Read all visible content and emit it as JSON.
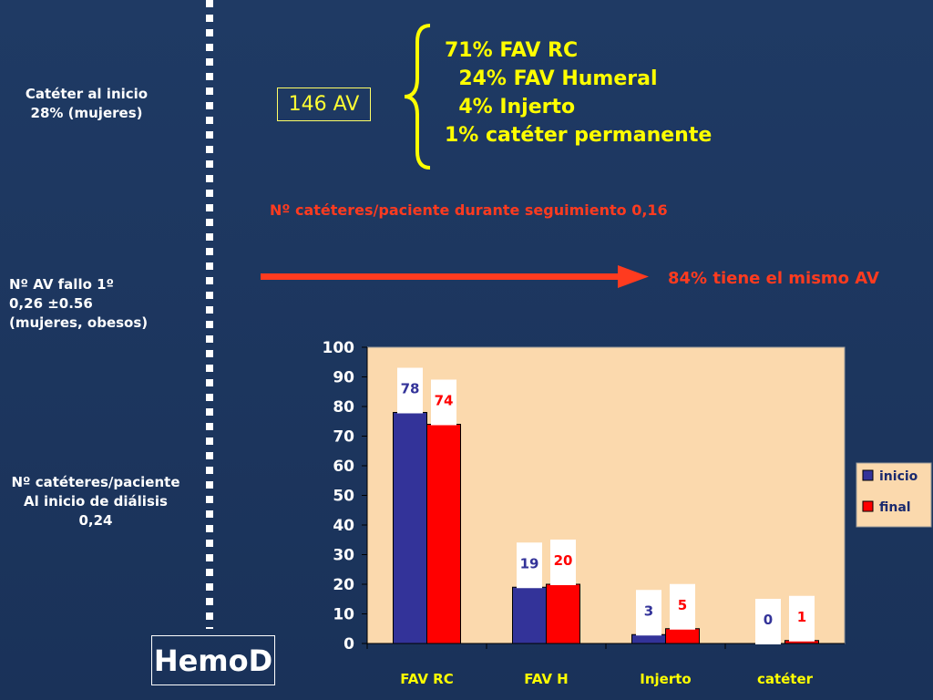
{
  "left_notes": {
    "catheter_start": [
      "Catéter al inicio",
      "28% (mujeres)"
    ],
    "av_failure": [
      "Nº AV fallo 1º",
      "0,26 ±0.56",
      "(mujeres, obesos)"
    ],
    "catheters_per_patient": [
      "Nº catéteres/paciente",
      "Al inicio de diálisis",
      "0,24"
    ]
  },
  "av_box": "146 AV",
  "av_breakdown": [
    "71% FAV RC",
    "  24% FAV Humeral",
    "  4% Injerto",
    "1% catéter permanente"
  ],
  "catheters_follow_up": "Nº catéteres/paciente durante seguimiento 0,16",
  "same_av": "84% tiene el mismo AV",
  "hemod_label": "HemoD",
  "colors": {
    "text_yellow": "#ffff00",
    "text_red": "#ff3b1f",
    "arrow": "#ff3b1f",
    "plot_bg": "#fbd9ad",
    "series_inicio": "#333399",
    "series_final": "#ff0000"
  },
  "chart_data": {
    "type": "bar",
    "categories": [
      "FAV RC",
      "FAV H",
      "Injerto",
      "catéter"
    ],
    "series": [
      {
        "name": "inicio",
        "values": [
          78,
          19,
          3,
          0
        ]
      },
      {
        "name": "final",
        "values": [
          74,
          20,
          5,
          1
        ]
      }
    ],
    "ylim": [
      0,
      100
    ],
    "yticks": [
      0,
      10,
      20,
      30,
      40,
      50,
      60,
      70,
      80,
      90,
      100
    ],
    "legend_placement": "right",
    "data_labels": true,
    "grid": false
  }
}
